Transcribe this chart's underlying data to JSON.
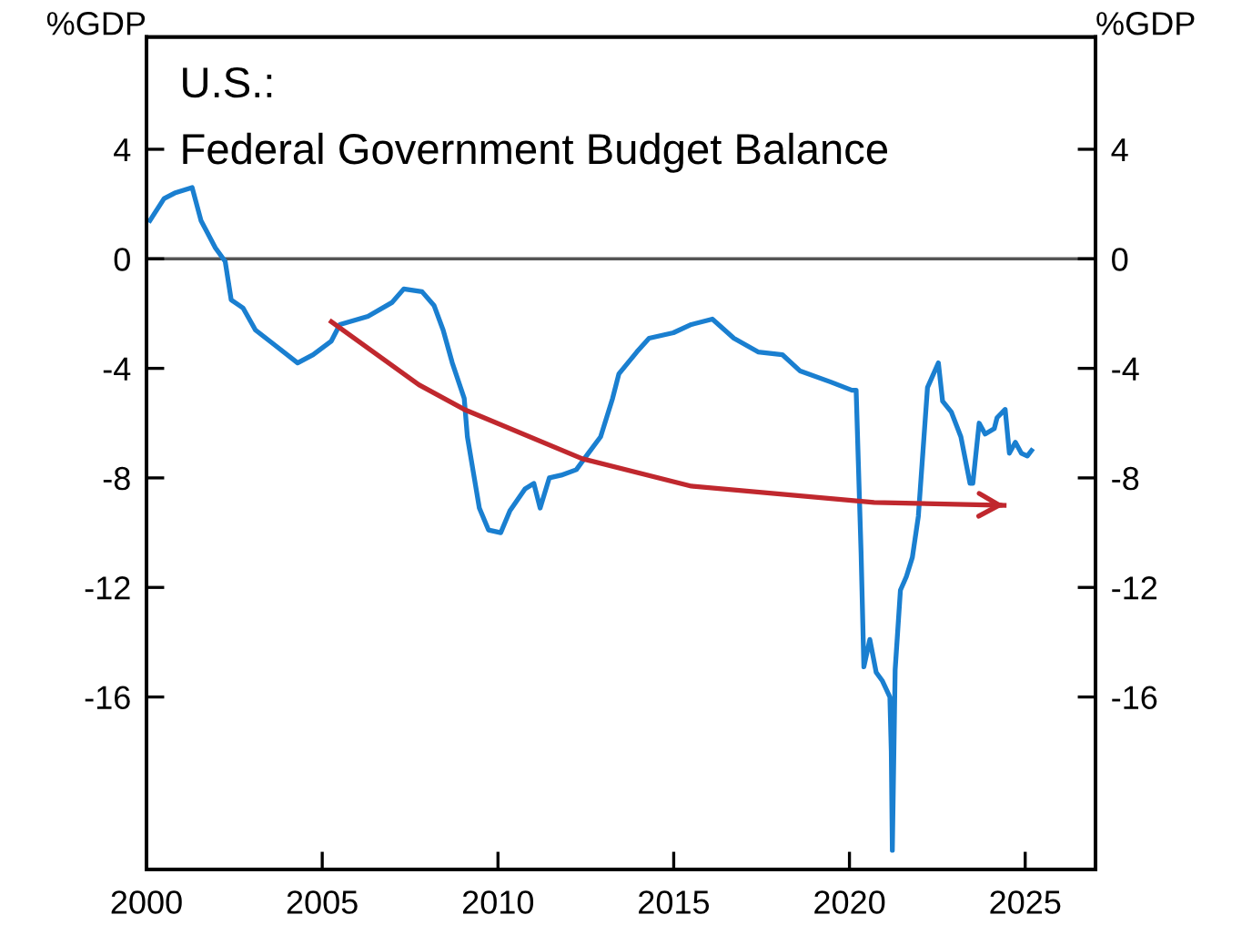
{
  "chart_data": {
    "type": "line",
    "title": "U.S.:",
    "subtitle": "Federal Government Budget Balance",
    "ylabel": "%GDP",
    "y2label": "%GDP",
    "xlim": [
      2000,
      2027
    ],
    "xticks": [
      2000,
      2005,
      2010,
      2015,
      2020,
      2025
    ],
    "ylim": [
      -22.3,
      8.1
    ],
    "yticks": [
      4,
      0,
      -4,
      -8,
      -12,
      -16
    ],
    "y2lim": [
      -22.3,
      8.1
    ],
    "y2ticks": [
      4,
      0,
      -4,
      -8,
      -12,
      -16
    ],
    "grid": false,
    "marker": "none",
    "line_style": "solid",
    "ref_lines": [
      {
        "axis": "y",
        "value": 0,
        "label": null,
        "color": "#555555"
      }
    ],
    "series": [
      {
        "color": "#1a7fd0",
        "x": [
          2000.1,
          2000.5,
          2000.8,
          2001.3,
          2001.55,
          2001.96,
          2002.24,
          2002.41,
          2002.75,
          2003.1,
          2003.6,
          2004.3,
          2004.74,
          2005.26,
          2005.5,
          2006.3,
          2006.98,
          2007.32,
          2007.84,
          2008.18,
          2008.44,
          2008.7,
          2009.04,
          2009.13,
          2009.3,
          2009.47,
          2009.73,
          2010.08,
          2010.34,
          2010.77,
          2011.02,
          2011.2,
          2011.46,
          2011.8,
          2012.23,
          2012.57,
          2012.92,
          2013.26,
          2013.44,
          2013.95,
          2014.3,
          2014.99,
          2015.5,
          2016.1,
          2016.71,
          2017.4,
          2018.09,
          2018.6,
          2019.47,
          2020.07,
          2020.19,
          2020.33,
          2020.41,
          2020.58,
          2020.76,
          2020.93,
          2021.15,
          2021.19,
          2021.22,
          2021.3,
          2021.45,
          2021.62,
          2021.79,
          2021.96,
          2022.22,
          2022.53,
          2022.65,
          2022.9,
          2023.17,
          2023.43,
          2023.51,
          2023.69,
          2023.86,
          2024.12,
          2024.2,
          2024.43,
          2024.55,
          2024.72,
          2024.89,
          2025.06,
          2025.18
        ],
        "values": [
          1.4,
          2.2,
          2.4,
          2.6,
          1.4,
          0.4,
          -0.1,
          -1.5,
          -1.8,
          -2.6,
          -3.1,
          -3.8,
          -3.5,
          -3.0,
          -2.4,
          -2.1,
          -1.6,
          -1.1,
          -1.2,
          -1.7,
          -2.6,
          -3.8,
          -5.1,
          -6.5,
          -7.8,
          -9.1,
          -9.9,
          -10.0,
          -9.2,
          -8.4,
          -8.2,
          -9.1,
          -8.0,
          -7.9,
          -7.7,
          -7.1,
          -6.5,
          -5.1,
          -4.2,
          -3.4,
          -2.9,
          -2.7,
          -2.4,
          -2.2,
          -2.9,
          -3.4,
          -3.5,
          -4.1,
          -4.5,
          -4.8,
          -4.8,
          -10.7,
          -14.9,
          -13.9,
          -15.1,
          -15.4,
          -16.0,
          -18.0,
          -21.6,
          -15.0,
          -12.1,
          -11.6,
          -10.9,
          -9.4,
          -4.7,
          -3.8,
          -5.2,
          -5.6,
          -6.5,
          -8.2,
          -8.2,
          -6.0,
          -6.4,
          -6.2,
          -5.8,
          -5.5,
          -7.1,
          -6.7,
          -7.1,
          -7.2,
          -7.0
        ]
      },
      {
        "type": "line",
        "color": "#c0282e",
        "x": [
          2005.26,
          2007.75,
          2009.04,
          2012.4,
          2015.5,
          2020.7,
          2024.4
        ],
        "values": [
          -2.3,
          -4.6,
          -5.5,
          -7.3,
          -8.3,
          -8.9,
          -9.0
        ]
      }
    ]
  }
}
